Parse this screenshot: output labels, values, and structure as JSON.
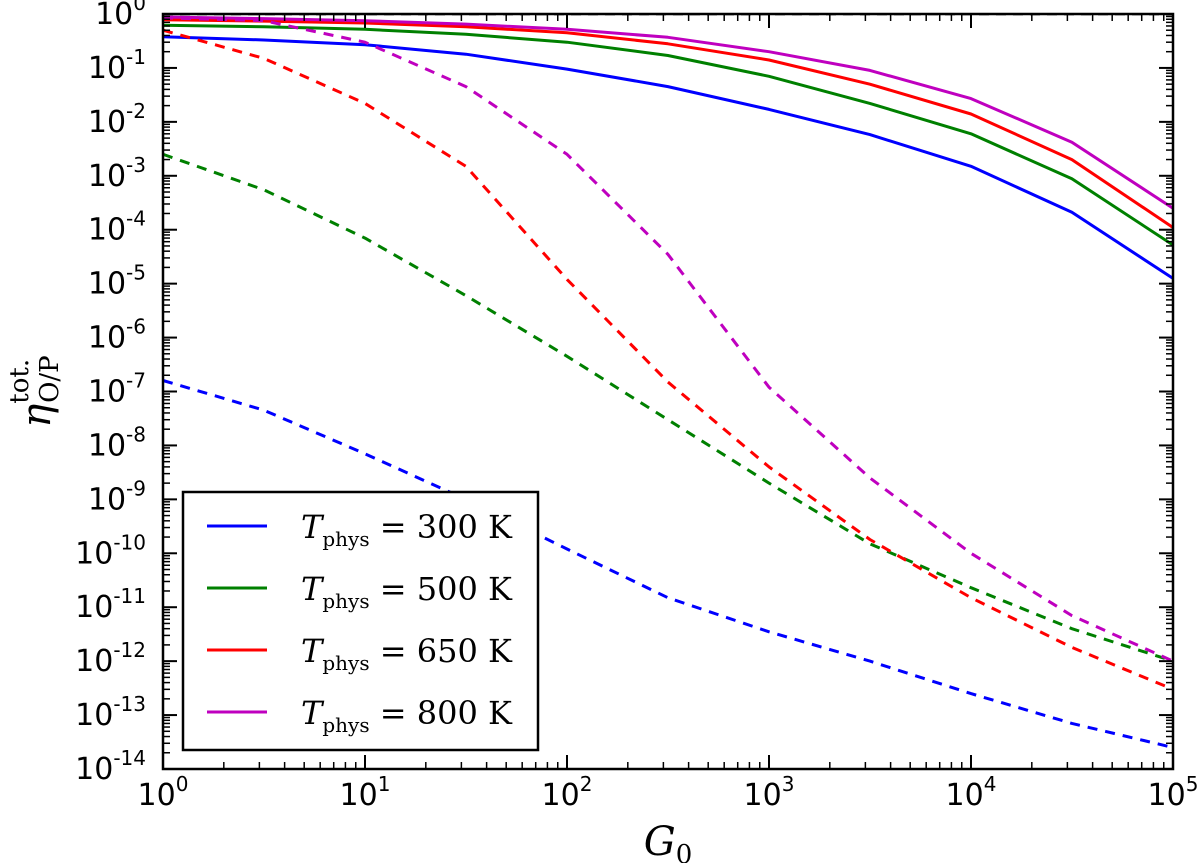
{
  "chart_data": {
    "type": "line",
    "title": "",
    "xlabel": "G",
    "xlabel_sub": "0",
    "ylabel": "η",
    "ylabel_sup": "tot.",
    "ylabel_sub": "O/P",
    "xscale": "log",
    "yscale": "log",
    "xlim": [
      1,
      100000
    ],
    "ylim": [
      1e-14,
      1
    ],
    "x_ticks": [
      {
        "base": "10",
        "exp": "0"
      },
      {
        "base": "10",
        "exp": "1"
      },
      {
        "base": "10",
        "exp": "2"
      },
      {
        "base": "10",
        "exp": "3"
      },
      {
        "base": "10",
        "exp": "4"
      },
      {
        "base": "10",
        "exp": "5"
      }
    ],
    "y_ticks": [
      {
        "base": "10",
        "exp": "0"
      },
      {
        "base": "10",
        "exp": "-1"
      },
      {
        "base": "10",
        "exp": "-2"
      },
      {
        "base": "10",
        "exp": "-3"
      },
      {
        "base": "10",
        "exp": "-4"
      },
      {
        "base": "10",
        "exp": "-5"
      },
      {
        "base": "10",
        "exp": "-6"
      },
      {
        "base": "10",
        "exp": "-7"
      },
      {
        "base": "10",
        "exp": "-8"
      },
      {
        "base": "10",
        "exp": "-9"
      },
      {
        "base": "10",
        "exp": "-10"
      },
      {
        "base": "10",
        "exp": "-11"
      },
      {
        "base": "10",
        "exp": "-12"
      },
      {
        "base": "10",
        "exp": "-13"
      },
      {
        "base": "10",
        "exp": "-14"
      }
    ],
    "reference_line": {
      "y": 1,
      "style": "dashed",
      "color": "#000000"
    },
    "legend_position": "lower-left",
    "series": [
      {
        "name": "T_phys = 300 K",
        "legend_symbol": "T",
        "legend_sub": "phys",
        "legend_value": "= 300 K",
        "color": "#0000ff",
        "solid": {
          "x": [
            1,
            3.16,
            10,
            31.6,
            100,
            316,
            1000,
            3160,
            10000,
            31600,
            100000
          ],
          "y": [
            0.38,
            0.33,
            0.27,
            0.18,
            0.095,
            0.045,
            0.017,
            0.0058,
            0.0015,
            0.00021,
            1.25e-05
          ]
        },
        "dashed": {
          "x": [
            1,
            3.16,
            10,
            31.6,
            100,
            316,
            1000,
            3160,
            10000,
            31600,
            100000
          ],
          "y": [
            1.6e-07,
            4.5e-08,
            7e-09,
            1e-09,
            1.2e-10,
            1.5e-11,
            3.5e-12,
            1e-12,
            2.5e-13,
            7e-14,
            2.5e-14
          ]
        }
      },
      {
        "name": "T_phys = 500 K",
        "legend_symbol": "T",
        "legend_sub": "phys",
        "legend_value": "= 500 K",
        "color": "#008000",
        "solid": {
          "x": [
            1,
            3.16,
            10,
            31.6,
            100,
            316,
            1000,
            3160,
            10000,
            31600,
            100000
          ],
          "y": [
            0.62,
            0.58,
            0.52,
            0.42,
            0.3,
            0.17,
            0.07,
            0.022,
            0.006,
            0.00088,
            5.2e-05
          ]
        },
        "dashed": {
          "x": [
            1,
            3.16,
            10,
            31.6,
            100,
            316,
            1000,
            3160,
            10000,
            31600,
            100000
          ],
          "y": [
            0.0025,
            0.00055,
            7e-05,
            6e-06,
            4.5e-07,
            3e-08,
            2e-09,
            1.5e-10,
            2.3e-11,
            4e-12,
            1e-12
          ]
        }
      },
      {
        "name": "T_phys = 650 K",
        "legend_symbol": "T",
        "legend_sub": "phys",
        "legend_value": "= 650 K",
        "color": "#ff0000",
        "solid": {
          "x": [
            1,
            3.16,
            10,
            31.6,
            100,
            316,
            1000,
            3160,
            10000,
            31600,
            100000
          ],
          "y": [
            0.78,
            0.74,
            0.68,
            0.58,
            0.45,
            0.28,
            0.14,
            0.05,
            0.014,
            0.002,
            0.00011
          ]
        },
        "dashed": {
          "x": [
            1,
            3.16,
            10,
            31.6,
            100,
            316,
            1000,
            3160,
            10000,
            31600,
            100000
          ],
          "y": [
            0.5,
            0.15,
            0.022,
            0.0015,
            1.2e-05,
            1.5e-07,
            4e-09,
            1.8e-10,
            1.5e-11,
            1.8e-12,
            3e-13
          ]
        }
      },
      {
        "name": "T_phys = 800 K",
        "legend_symbol": "T",
        "legend_sub": "phys",
        "legend_value": "= 800 K",
        "color": "#bf00bf",
        "solid": {
          "x": [
            1,
            3.16,
            10,
            31.6,
            100,
            316,
            1000,
            3160,
            10000,
            31600,
            100000
          ],
          "y": [
            0.88,
            0.82,
            0.75,
            0.65,
            0.52,
            0.37,
            0.2,
            0.09,
            0.027,
            0.0042,
            0.00025
          ]
        },
        "dashed": {
          "x": [
            1,
            3.16,
            10,
            31.6,
            100,
            316,
            1000,
            3160,
            10000,
            31600,
            100000
          ],
          "y": [
            0.85,
            0.75,
            0.3,
            0.045,
            0.0025,
            3.5e-05,
            1.2e-07,
            2.5e-09,
            1e-10,
            7e-12,
            1e-12
          ]
        }
      }
    ]
  }
}
